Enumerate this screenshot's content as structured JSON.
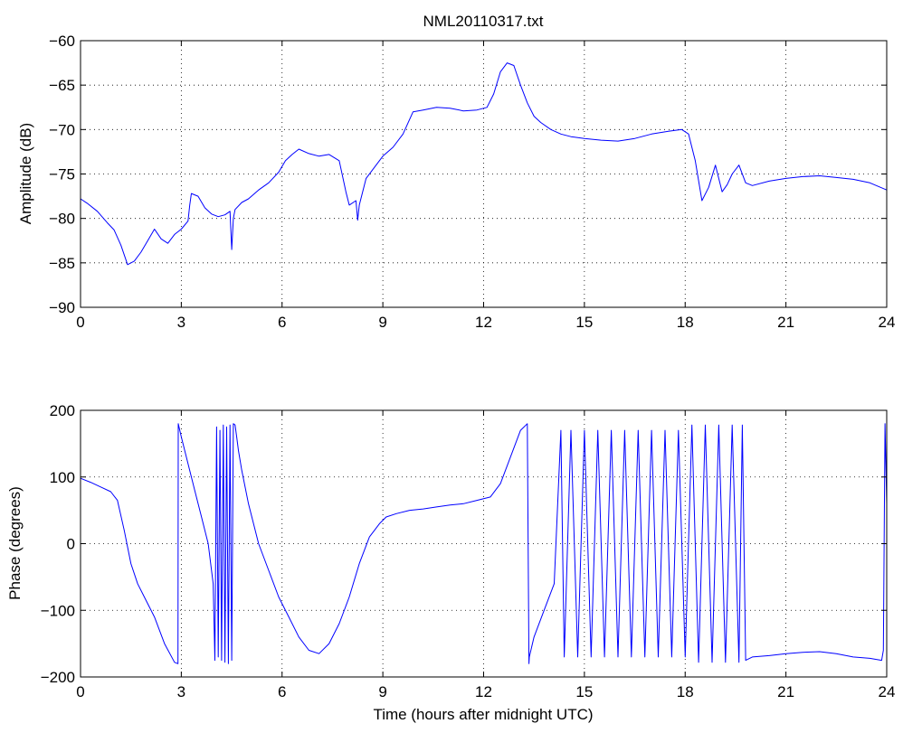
{
  "title": "NML20110317.txt",
  "colors": {
    "series": "#0000ff",
    "axes": "#000000",
    "grid": "#000000",
    "background": "#ffffff"
  },
  "chart_data": [
    {
      "type": "line",
      "title": "NML20110317.txt",
      "xlabel": "",
      "ylabel": "Amplitude (dB)",
      "xlim": [
        0,
        24
      ],
      "ylim": [
        -90,
        -60
      ],
      "grid": true,
      "x_ticks": [
        0,
        3,
        6,
        9,
        12,
        15,
        18,
        21,
        24
      ],
      "y_ticks": [
        -90,
        -85,
        -80,
        -75,
        -70,
        -65,
        -60
      ],
      "x_tick_labels": [
        "0",
        "3",
        "6",
        "9",
        "12",
        "15",
        "18",
        "21",
        "24"
      ],
      "y_tick_labels": [
        "−90",
        "−85",
        "−80",
        "−75",
        "−70",
        "−65",
        "−60"
      ],
      "series": [
        {
          "x": [
            0,
            0.2,
            0.5,
            0.8,
            1.0,
            1.2,
            1.4,
            1.6,
            1.8,
            2.0,
            2.2,
            2.4,
            2.6,
            2.8,
            3.0,
            3.2,
            3.25,
            3.3,
            3.5,
            3.7,
            3.9,
            4.1,
            4.3,
            4.45,
            4.5,
            4.55,
            4.6,
            4.8,
            5.0,
            5.3,
            5.6,
            5.9,
            6.1,
            6.3,
            6.5,
            6.8,
            7.1,
            7.4,
            7.7,
            7.9,
            8.0,
            8.2,
            8.25,
            8.3,
            8.5,
            8.7,
            9.0,
            9.3,
            9.6,
            9.9,
            10.2,
            10.6,
            11.0,
            11.4,
            11.8,
            12.1,
            12.3,
            12.5,
            12.7,
            12.9,
            13.1,
            13.3,
            13.5,
            13.7,
            14.0,
            14.3,
            14.6,
            15.0,
            15.5,
            16.0,
            16.5,
            17.0,
            17.5,
            17.9,
            18.1,
            18.3,
            18.5,
            18.7,
            18.9,
            19.1,
            19.25,
            19.4,
            19.6,
            19.8,
            20.0,
            20.5,
            21.0,
            21.5,
            22.0,
            22.5,
            23.0,
            23.5,
            24.0
          ],
          "values": [
            -77.8,
            -78.3,
            -79.2,
            -80.5,
            -81.3,
            -83.0,
            -85.2,
            -84.8,
            -83.8,
            -82.5,
            -81.2,
            -82.3,
            -82.8,
            -81.8,
            -81.2,
            -80.3,
            -78.5,
            -77.2,
            -77.5,
            -78.8,
            -79.5,
            -79.8,
            -79.6,
            -79.2,
            -83.5,
            -80.0,
            -79.0,
            -78.2,
            -77.8,
            -76.8,
            -76.0,
            -74.8,
            -73.5,
            -72.8,
            -72.2,
            -72.7,
            -73.0,
            -72.8,
            -73.5,
            -77.0,
            -78.5,
            -78.0,
            -80.2,
            -78.5,
            -75.5,
            -74.5,
            -73.0,
            -72.0,
            -70.5,
            -68.0,
            -67.8,
            -67.5,
            -67.6,
            -67.9,
            -67.8,
            -67.5,
            -66.0,
            -63.5,
            -62.5,
            -62.8,
            -65.0,
            -67.0,
            -68.5,
            -69.2,
            -70.0,
            -70.5,
            -70.8,
            -71.0,
            -71.2,
            -71.3,
            -71.0,
            -70.5,
            -70.2,
            -70.0,
            -70.5,
            -73.5,
            -78.0,
            -76.5,
            -74.0,
            -77.0,
            -76.2,
            -75.0,
            -74.0,
            -76.0,
            -76.3,
            -75.8,
            -75.5,
            -75.3,
            -75.2,
            -75.4,
            -75.6,
            -76.0,
            -76.8
          ]
        }
      ]
    },
    {
      "type": "line",
      "title": "",
      "xlabel": "Time (hours after midnight UTC)",
      "ylabel": "Phase (degrees)",
      "xlim": [
        0,
        24
      ],
      "ylim": [
        -200,
        200
      ],
      "grid": true,
      "x_ticks": [
        0,
        3,
        6,
        9,
        12,
        15,
        18,
        21,
        24
      ],
      "y_ticks": [
        -200,
        -100,
        0,
        100,
        200
      ],
      "x_tick_labels": [
        "0",
        "3",
        "6",
        "9",
        "12",
        "15",
        "18",
        "21",
        "24"
      ],
      "y_tick_labels": [
        "−200",
        "−100",
        "0",
        "100",
        "200"
      ],
      "series": [
        {
          "x": [
            0,
            0.3,
            0.6,
            0.9,
            1.1,
            1.3,
            1.5,
            1.7,
            1.9,
            2.2,
            2.5,
            2.8,
            2.9,
            2.91,
            3.0,
            3.2,
            3.4,
            3.6,
            3.8,
            3.95,
            4.0,
            4.05,
            4.1,
            4.15,
            4.2,
            4.25,
            4.3,
            4.35,
            4.4,
            4.45,
            4.5,
            4.55,
            4.6,
            4.65,
            4.7,
            4.8,
            5.0,
            5.3,
            5.6,
            5.9,
            6.2,
            6.5,
            6.8,
            7.1,
            7.4,
            7.7,
            8.0,
            8.3,
            8.6,
            8.9,
            9.1,
            9.4,
            9.8,
            10.2,
            10.6,
            11.0,
            11.4,
            11.8,
            12.2,
            12.5,
            12.8,
            13.1,
            13.3,
            13.35,
            13.36,
            13.5,
            13.8,
            14.1,
            14.3,
            14.4,
            14.6,
            14.8,
            15.0,
            15.2,
            15.4,
            15.6,
            15.8,
            16.0,
            16.2,
            16.4,
            16.6,
            16.8,
            17.0,
            17.2,
            17.4,
            17.6,
            17.8,
            18.0,
            18.2,
            18.4,
            18.6,
            18.8,
            19.0,
            19.2,
            19.4,
            19.6,
            19.7,
            19.8,
            20.0,
            20.5,
            21.0,
            21.5,
            22.0,
            22.5,
            23.0,
            23.5,
            23.85,
            23.9,
            23.95,
            24.0
          ],
          "values": [
            98,
            92,
            85,
            78,
            65,
            20,
            -30,
            -60,
            -80,
            -110,
            -150,
            -178,
            -180,
            180,
            160,
            120,
            80,
            40,
            0,
            -60,
            -175,
            175,
            -170,
            170,
            -175,
            178,
            -178,
            175,
            -180,
            178,
            -175,
            180,
            178,
            160,
            140,
            110,
            60,
            0,
            -40,
            -80,
            -110,
            -140,
            -160,
            -165,
            -150,
            -120,
            -80,
            -30,
            10,
            30,
            40,
            45,
            50,
            52,
            55,
            58,
            60,
            65,
            70,
            90,
            130,
            170,
            180,
            -180,
            -170,
            -140,
            -100,
            -60,
            170,
            -170,
            170,
            -170,
            170,
            -170,
            170,
            -170,
            170,
            -170,
            170,
            -170,
            170,
            -170,
            170,
            -170,
            170,
            -170,
            170,
            -170,
            178,
            -178,
            178,
            -178,
            178,
            -178,
            178,
            -178,
            178,
            -175,
            -170,
            -168,
            -165,
            -163,
            -162,
            -165,
            -170,
            -172,
            -175,
            -160,
            180,
            60
          ]
        }
      ]
    }
  ]
}
